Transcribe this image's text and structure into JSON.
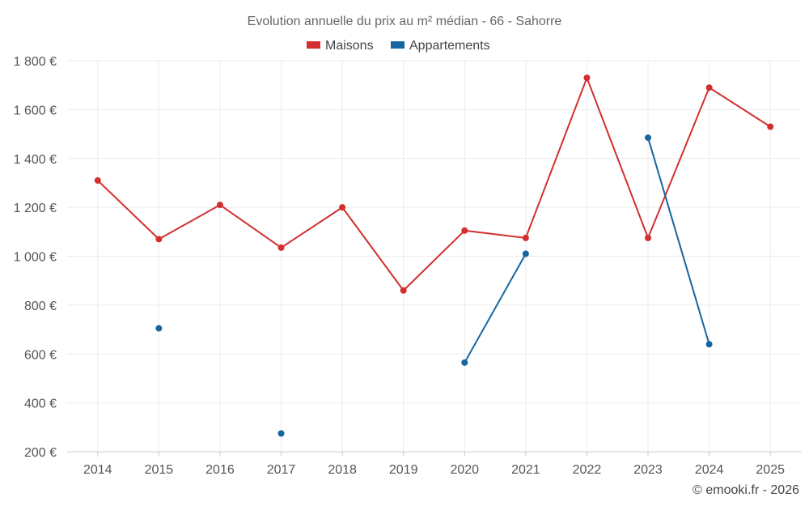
{
  "chart_data": {
    "type": "line",
    "title": "Evolution annuelle du prix au m² médian - 66 - Sahorre",
    "xlabel": "",
    "ylabel": "",
    "categories": [
      "2014",
      "2015",
      "2016",
      "2017",
      "2018",
      "2019",
      "2020",
      "2021",
      "2022",
      "2023",
      "2024",
      "2025"
    ],
    "ylim": [
      200,
      1800
    ],
    "yticks": [
      200,
      400,
      600,
      800,
      1000,
      1200,
      1400,
      1600,
      1800
    ],
    "ytick_labels": [
      "200 €",
      "400 €",
      "600 €",
      "800 €",
      "1 000 €",
      "1 200 €",
      "1 400 €",
      "1 600 €",
      "1 800 €"
    ],
    "legend_position": "top-center",
    "grid": true,
    "series": [
      {
        "name": "Maisons",
        "color": "#d32f2f",
        "values": [
          1310,
          1070,
          1210,
          1035,
          1200,
          860,
          1105,
          1075,
          1730,
          1075,
          1690,
          1530
        ]
      },
      {
        "name": "Appartements",
        "color": "#1565a0",
        "values": [
          null,
          705,
          null,
          275,
          null,
          null,
          565,
          1010,
          null,
          1485,
          640,
          null
        ]
      }
    ],
    "credit": "© emooki.fr - 2026"
  }
}
